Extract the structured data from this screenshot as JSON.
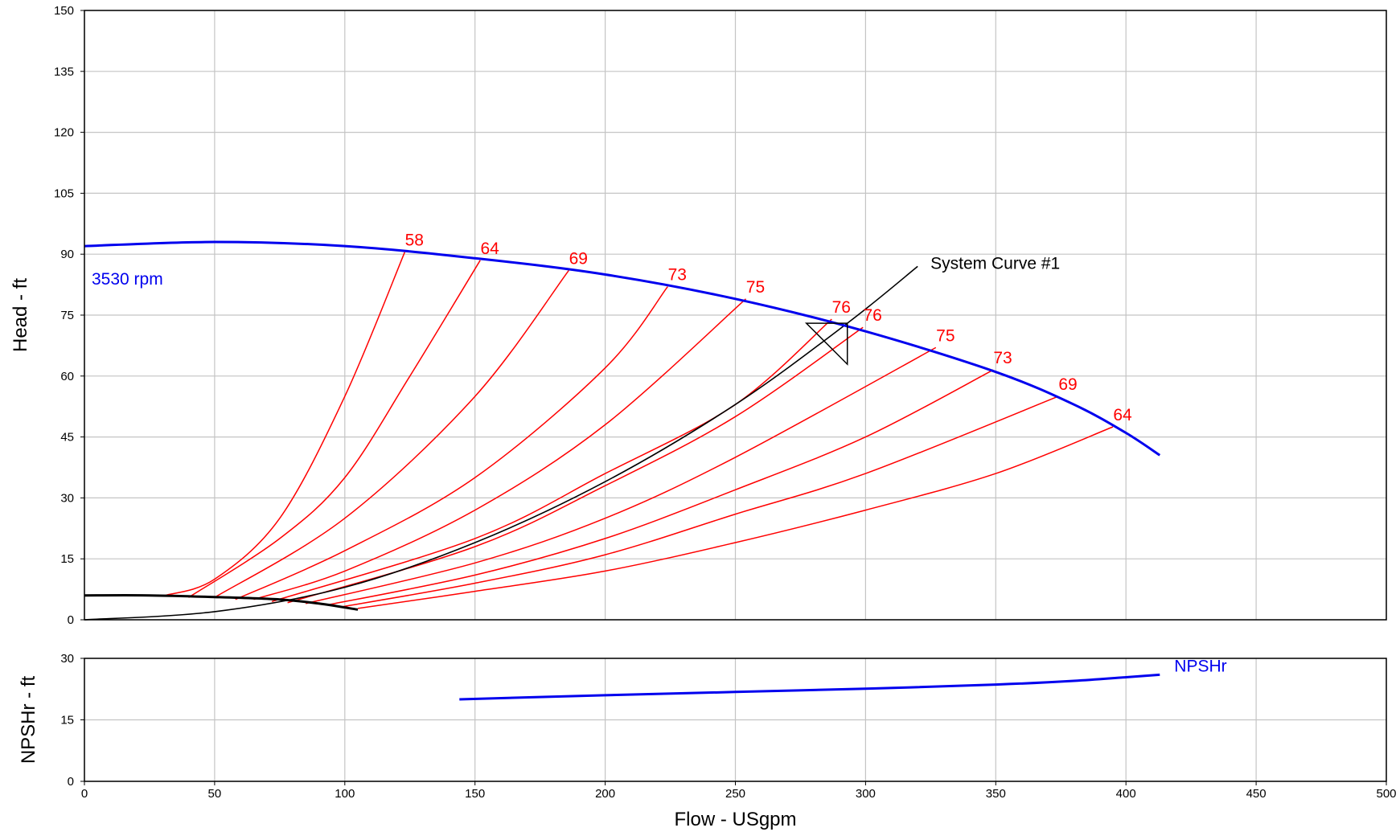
{
  "chart_data": {
    "type": "line",
    "xlabel": "Flow - USgpm",
    "x_ticks": [
      "0",
      "50",
      "100",
      "150",
      "200",
      "250",
      "300",
      "350",
      "400",
      "450",
      "500"
    ],
    "xlim": [
      0,
      500
    ],
    "grid": true,
    "head_panel": {
      "ylabel": "Head - ft",
      "ylim": [
        0,
        150
      ],
      "y_ticks": [
        "0",
        "15",
        "30",
        "45",
        "60",
        "75",
        "90",
        "105",
        "120",
        "135",
        "150"
      ],
      "pump_curve": {
        "label": "3530 rpm",
        "color": "#0000ee",
        "points": [
          [
            0,
            92
          ],
          [
            50,
            93
          ],
          [
            100,
            92
          ],
          [
            150,
            89
          ],
          [
            200,
            85
          ],
          [
            250,
            79
          ],
          [
            300,
            71
          ],
          [
            350,
            61
          ],
          [
            380,
            53
          ],
          [
            400,
            46
          ],
          [
            413,
            40.5
          ]
        ]
      },
      "system_curve": {
        "label": "System Curve #1",
        "color": "#000000",
        "points": [
          [
            0,
            0
          ],
          [
            50,
            2
          ],
          [
            100,
            8
          ],
          [
            150,
            19
          ],
          [
            200,
            34
          ],
          [
            250,
            53
          ],
          [
            293,
            73
          ],
          [
            320,
            87
          ]
        ]
      },
      "static_curve": {
        "color": "#000000",
        "points": [
          [
            0,
            6
          ],
          [
            25,
            6
          ],
          [
            50,
            5.6
          ],
          [
            75,
            5
          ],
          [
            90,
            4
          ],
          [
            105,
            2.5
          ]
        ]
      },
      "operating_point": {
        "x": 293,
        "y": 73
      },
      "efficiency_color": "#ff0000",
      "efficiency_lines": [
        {
          "label": "58",
          "points": [
            [
              31,
              6
            ],
            [
              50,
              10
            ],
            [
              75,
              25
            ],
            [
              100,
              55
            ],
            [
              123,
              90.5
            ]
          ]
        },
        {
          "label": "64",
          "points": [
            [
              40,
              5.5
            ],
            [
              75,
              20
            ],
            [
              100,
              35
            ],
            [
              125,
              60
            ],
            [
              152,
              88.5
            ]
          ]
        },
        {
          "label": "69",
          "points": [
            [
              50,
              5.5
            ],
            [
              100,
              25
            ],
            [
              150,
              55
            ],
            [
              186,
              86
            ]
          ]
        },
        {
          "label": "73",
          "points": [
            [
              58,
              5
            ],
            [
              100,
              17
            ],
            [
              150,
              35
            ],
            [
              200,
              62
            ],
            [
              224,
              82
            ]
          ]
        },
        {
          "label": "75",
          "points": [
            [
              65,
              5
            ],
            [
              100,
              12
            ],
            [
              150,
              27
            ],
            [
              200,
              48
            ],
            [
              254,
              79
            ]
          ]
        },
        {
          "label": "76",
          "points": [
            [
              72,
              4.5
            ],
            [
              150,
              20
            ],
            [
              200,
              36
            ],
            [
              250,
              53
            ],
            [
              287,
              74
            ]
          ]
        },
        {
          "label": "76",
          "points": [
            [
              78,
              4.2
            ],
            [
              150,
              18
            ],
            [
              200,
              33
            ],
            [
              250,
              50
            ],
            [
              299,
              72
            ]
          ]
        },
        {
          "label": "75",
          "points": [
            [
              85,
              4
            ],
            [
              150,
              14
            ],
            [
              200,
              25
            ],
            [
              250,
              40
            ],
            [
              327,
              67
            ]
          ]
        },
        {
          "label": "73",
          "points": [
            [
              93,
              3.6
            ],
            [
              150,
              11
            ],
            [
              200,
              20
            ],
            [
              250,
              32
            ],
            [
              300,
              45
            ],
            [
              349,
              61.5
            ]
          ]
        },
        {
          "label": "69",
          "points": [
            [
              98,
              3.1
            ],
            [
              150,
              9
            ],
            [
              200,
              16
            ],
            [
              250,
              26
            ],
            [
              300,
              36
            ],
            [
              374,
              55
            ]
          ]
        },
        {
          "label": "64",
          "points": [
            [
              105,
              2.8
            ],
            [
              150,
              7
            ],
            [
              200,
              12
            ],
            [
              250,
              19
            ],
            [
              300,
              27
            ],
            [
              350,
              36
            ],
            [
              395,
              47.5
            ]
          ]
        }
      ]
    },
    "npsh_panel": {
      "ylabel": "NPSHr - ft",
      "ylim": [
        0,
        30
      ],
      "y_ticks": [
        "0",
        "15",
        "30"
      ],
      "npsh_curve": {
        "label": "NPSHr",
        "color": "#0000ee",
        "points": [
          [
            144,
            20
          ],
          [
            200,
            21
          ],
          [
            250,
            21.8
          ],
          [
            300,
            22.6
          ],
          [
            350,
            23.6
          ],
          [
            380,
            24.5
          ],
          [
            400,
            25.4
          ],
          [
            413,
            26
          ]
        ]
      }
    }
  }
}
